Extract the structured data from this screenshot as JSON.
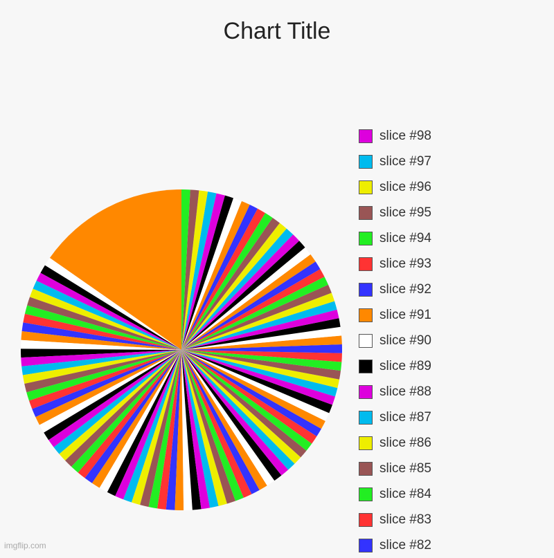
{
  "chart_data": {
    "type": "pie",
    "title": "Chart Title",
    "palette": [
      "#ff8800",
      "#ffffff",
      "#000000",
      "#dd00dd",
      "#00bbee",
      "#eeee00",
      "#995555",
      "#22ee22",
      "#ff3333",
      "#3333ff"
    ],
    "slice_count": 98,
    "big_slice_value": 17.5,
    "small_slice_value": 1,
    "legend": [
      {
        "label": "slice #98",
        "color": "#dd00dd"
      },
      {
        "label": "slice #97",
        "color": "#00bbee"
      },
      {
        "label": "slice #96",
        "color": "#eeee00"
      },
      {
        "label": "slice #95",
        "color": "#995555"
      },
      {
        "label": "slice #94",
        "color": "#22ee22"
      },
      {
        "label": "slice #93",
        "color": "#ff3333"
      },
      {
        "label": "slice #92",
        "color": "#3333ff"
      },
      {
        "label": "slice #91",
        "color": "#ff8800"
      },
      {
        "label": "slice #90",
        "color": "#ffffff"
      },
      {
        "label": "slice #89",
        "color": "#000000"
      },
      {
        "label": "slice #88",
        "color": "#dd00dd"
      },
      {
        "label": "slice #87",
        "color": "#00bbee"
      },
      {
        "label": "slice #86",
        "color": "#eeee00"
      },
      {
        "label": "slice #85",
        "color": "#995555"
      },
      {
        "label": "slice #84",
        "color": "#22ee22"
      },
      {
        "label": "slice #83",
        "color": "#ff3333"
      },
      {
        "label": "slice #82",
        "color": "#3333ff"
      }
    ]
  },
  "watermark": "imgflip.com"
}
